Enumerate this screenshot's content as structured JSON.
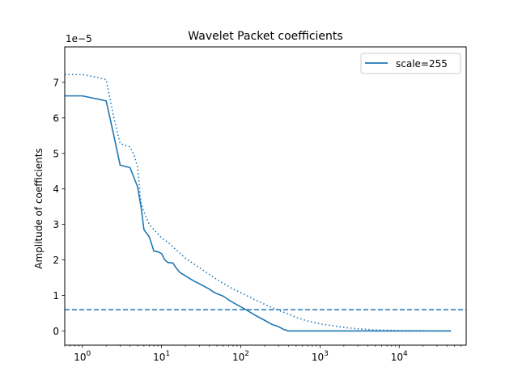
{
  "chart_data": {
    "type": "line",
    "title": "Wavelet Packet coefficients",
    "xlabel": "",
    "ylabel": "Amplitude of coefficients",
    "y_offset_label": "1e−5",
    "xscale": "log",
    "xlim": [
      0.6,
      70000
    ],
    "ylim": [
      -0.4,
      8.0
    ],
    "y_unit_multiplier": 1e-05,
    "grid": false,
    "legend": {
      "position": "top-right",
      "entries": [
        "scale=255"
      ]
    },
    "x_ticks": [
      {
        "value": 1,
        "label_base": "10",
        "label_exp": "0"
      },
      {
        "value": 10,
        "label_base": "10",
        "label_exp": "1"
      },
      {
        "value": 100,
        "label_base": "10",
        "label_exp": "2"
      },
      {
        "value": 1000,
        "label_base": "10",
        "label_exp": "3"
      },
      {
        "value": 10000,
        "label_base": "10",
        "label_exp": "4"
      }
    ],
    "y_ticks": [
      {
        "value": 0,
        "label": "0"
      },
      {
        "value": 1,
        "label": "1"
      },
      {
        "value": 2,
        "label": "2"
      },
      {
        "value": 3,
        "label": "3"
      },
      {
        "value": 4,
        "label": "4"
      },
      {
        "value": 5,
        "label": "5"
      },
      {
        "value": 6,
        "label": "6"
      },
      {
        "value": 7,
        "label": "7"
      }
    ],
    "color": "#1f77b4",
    "series": [
      {
        "name": "scale=255",
        "style": "solid",
        "x": [
          0.6,
          1,
          2,
          2.5,
          3,
          4,
          5,
          5.5,
          6,
          7,
          8,
          9,
          10,
          11,
          12,
          14,
          15,
          17,
          20,
          25,
          30,
          35,
          40,
          45,
          50,
          60,
          70,
          80,
          100,
          120,
          150,
          200,
          250,
          300,
          350,
          400,
          1000,
          10000,
          45000
        ],
        "y": [
          6.62,
          6.62,
          6.48,
          5.5,
          4.67,
          4.6,
          4.05,
          3.5,
          2.85,
          2.65,
          2.25,
          2.23,
          2.18,
          2.0,
          1.93,
          1.91,
          1.8,
          1.65,
          1.55,
          1.42,
          1.33,
          1.25,
          1.18,
          1.1,
          1.05,
          0.98,
          0.88,
          0.8,
          0.68,
          0.58,
          0.45,
          0.3,
          0.18,
          0.12,
          0.04,
          0.0,
          0.0,
          0.0,
          0.0
        ]
      },
      {
        "style": "dotted",
        "x": [
          0.6,
          1,
          1.5,
          2,
          2.5,
          3,
          4,
          4.5,
          5,
          5.5,
          6,
          7,
          8,
          10,
          12,
          15,
          20,
          30,
          50,
          80,
          100,
          150,
          200,
          300,
          400,
          500,
          700,
          1000,
          2000,
          3000,
          5000,
          10000,
          20000,
          45000
        ],
        "y": [
          7.22,
          7.22,
          7.15,
          7.08,
          6.0,
          5.28,
          5.18,
          4.95,
          4.6,
          3.6,
          3.35,
          3.0,
          2.85,
          2.62,
          2.5,
          2.3,
          2.05,
          1.78,
          1.45,
          1.18,
          1.08,
          0.88,
          0.75,
          0.58,
          0.48,
          0.38,
          0.28,
          0.2,
          0.1,
          0.06,
          0.03,
          0.01,
          0.005,
          0.0
        ]
      },
      {
        "style": "dashed",
        "kind": "horizontal-line",
        "y": 0.6
      }
    ]
  }
}
